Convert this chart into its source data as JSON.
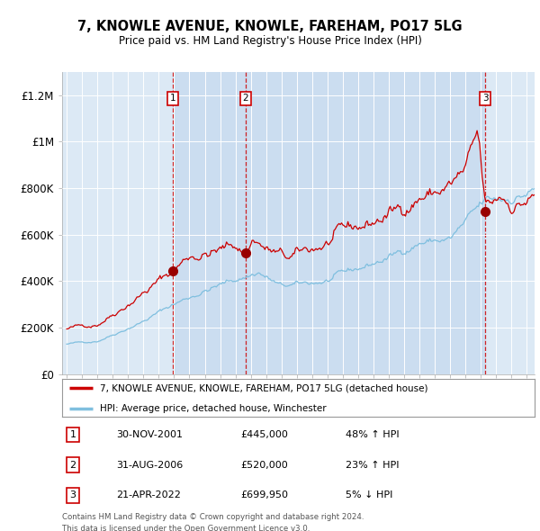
{
  "title": "7, KNOWLE AVENUE, KNOWLE, FAREHAM, PO17 5LG",
  "subtitle": "Price paid vs. HM Land Registry's House Price Index (HPI)",
  "background_color": "#ffffff",
  "plot_bg_color": "#dce9f5",
  "shade_color": "#c5d9ee",
  "grid_color": "#ffffff",
  "ylabel_ticks": [
    "£0",
    "£200K",
    "£400K",
    "£600K",
    "£800K",
    "£1M",
    "£1.2M"
  ],
  "ytick_values": [
    0,
    200000,
    400000,
    600000,
    800000,
    1000000,
    1200000
  ],
  "ylim": [
    0,
    1300000
  ],
  "xlim_start": 1994.7,
  "xlim_end": 2025.5,
  "legend_line1": "7, KNOWLE AVENUE, KNOWLE, FAREHAM, PO17 5LG (detached house)",
  "legend_line2": "HPI: Average price, detached house, Winchester",
  "sales": [
    {
      "label": "1",
      "date_x": 2001.917,
      "price": 445000,
      "text": "30-NOV-2001",
      "amount": "£445,000",
      "pct": "48% ↑ HPI"
    },
    {
      "label": "2",
      "date_x": 2006.667,
      "price": 520000,
      "text": "31-AUG-2006",
      "amount": "£520,000",
      "pct": "23% ↑ HPI"
    },
    {
      "label": "3",
      "date_x": 2022.292,
      "price": 699950,
      "text": "21-APR-2022",
      "amount": "£699,950",
      "pct": "5% ↓ HPI"
    }
  ],
  "footnote1": "Contains HM Land Registry data © Crown copyright and database right 2024.",
  "footnote2": "This data is licensed under the Open Government Licence v3.0.",
  "hpi_color": "#7fbfdf",
  "price_color": "#cc0000",
  "sale_dot_color": "#990000",
  "dashed_line_color": "#cc0000"
}
